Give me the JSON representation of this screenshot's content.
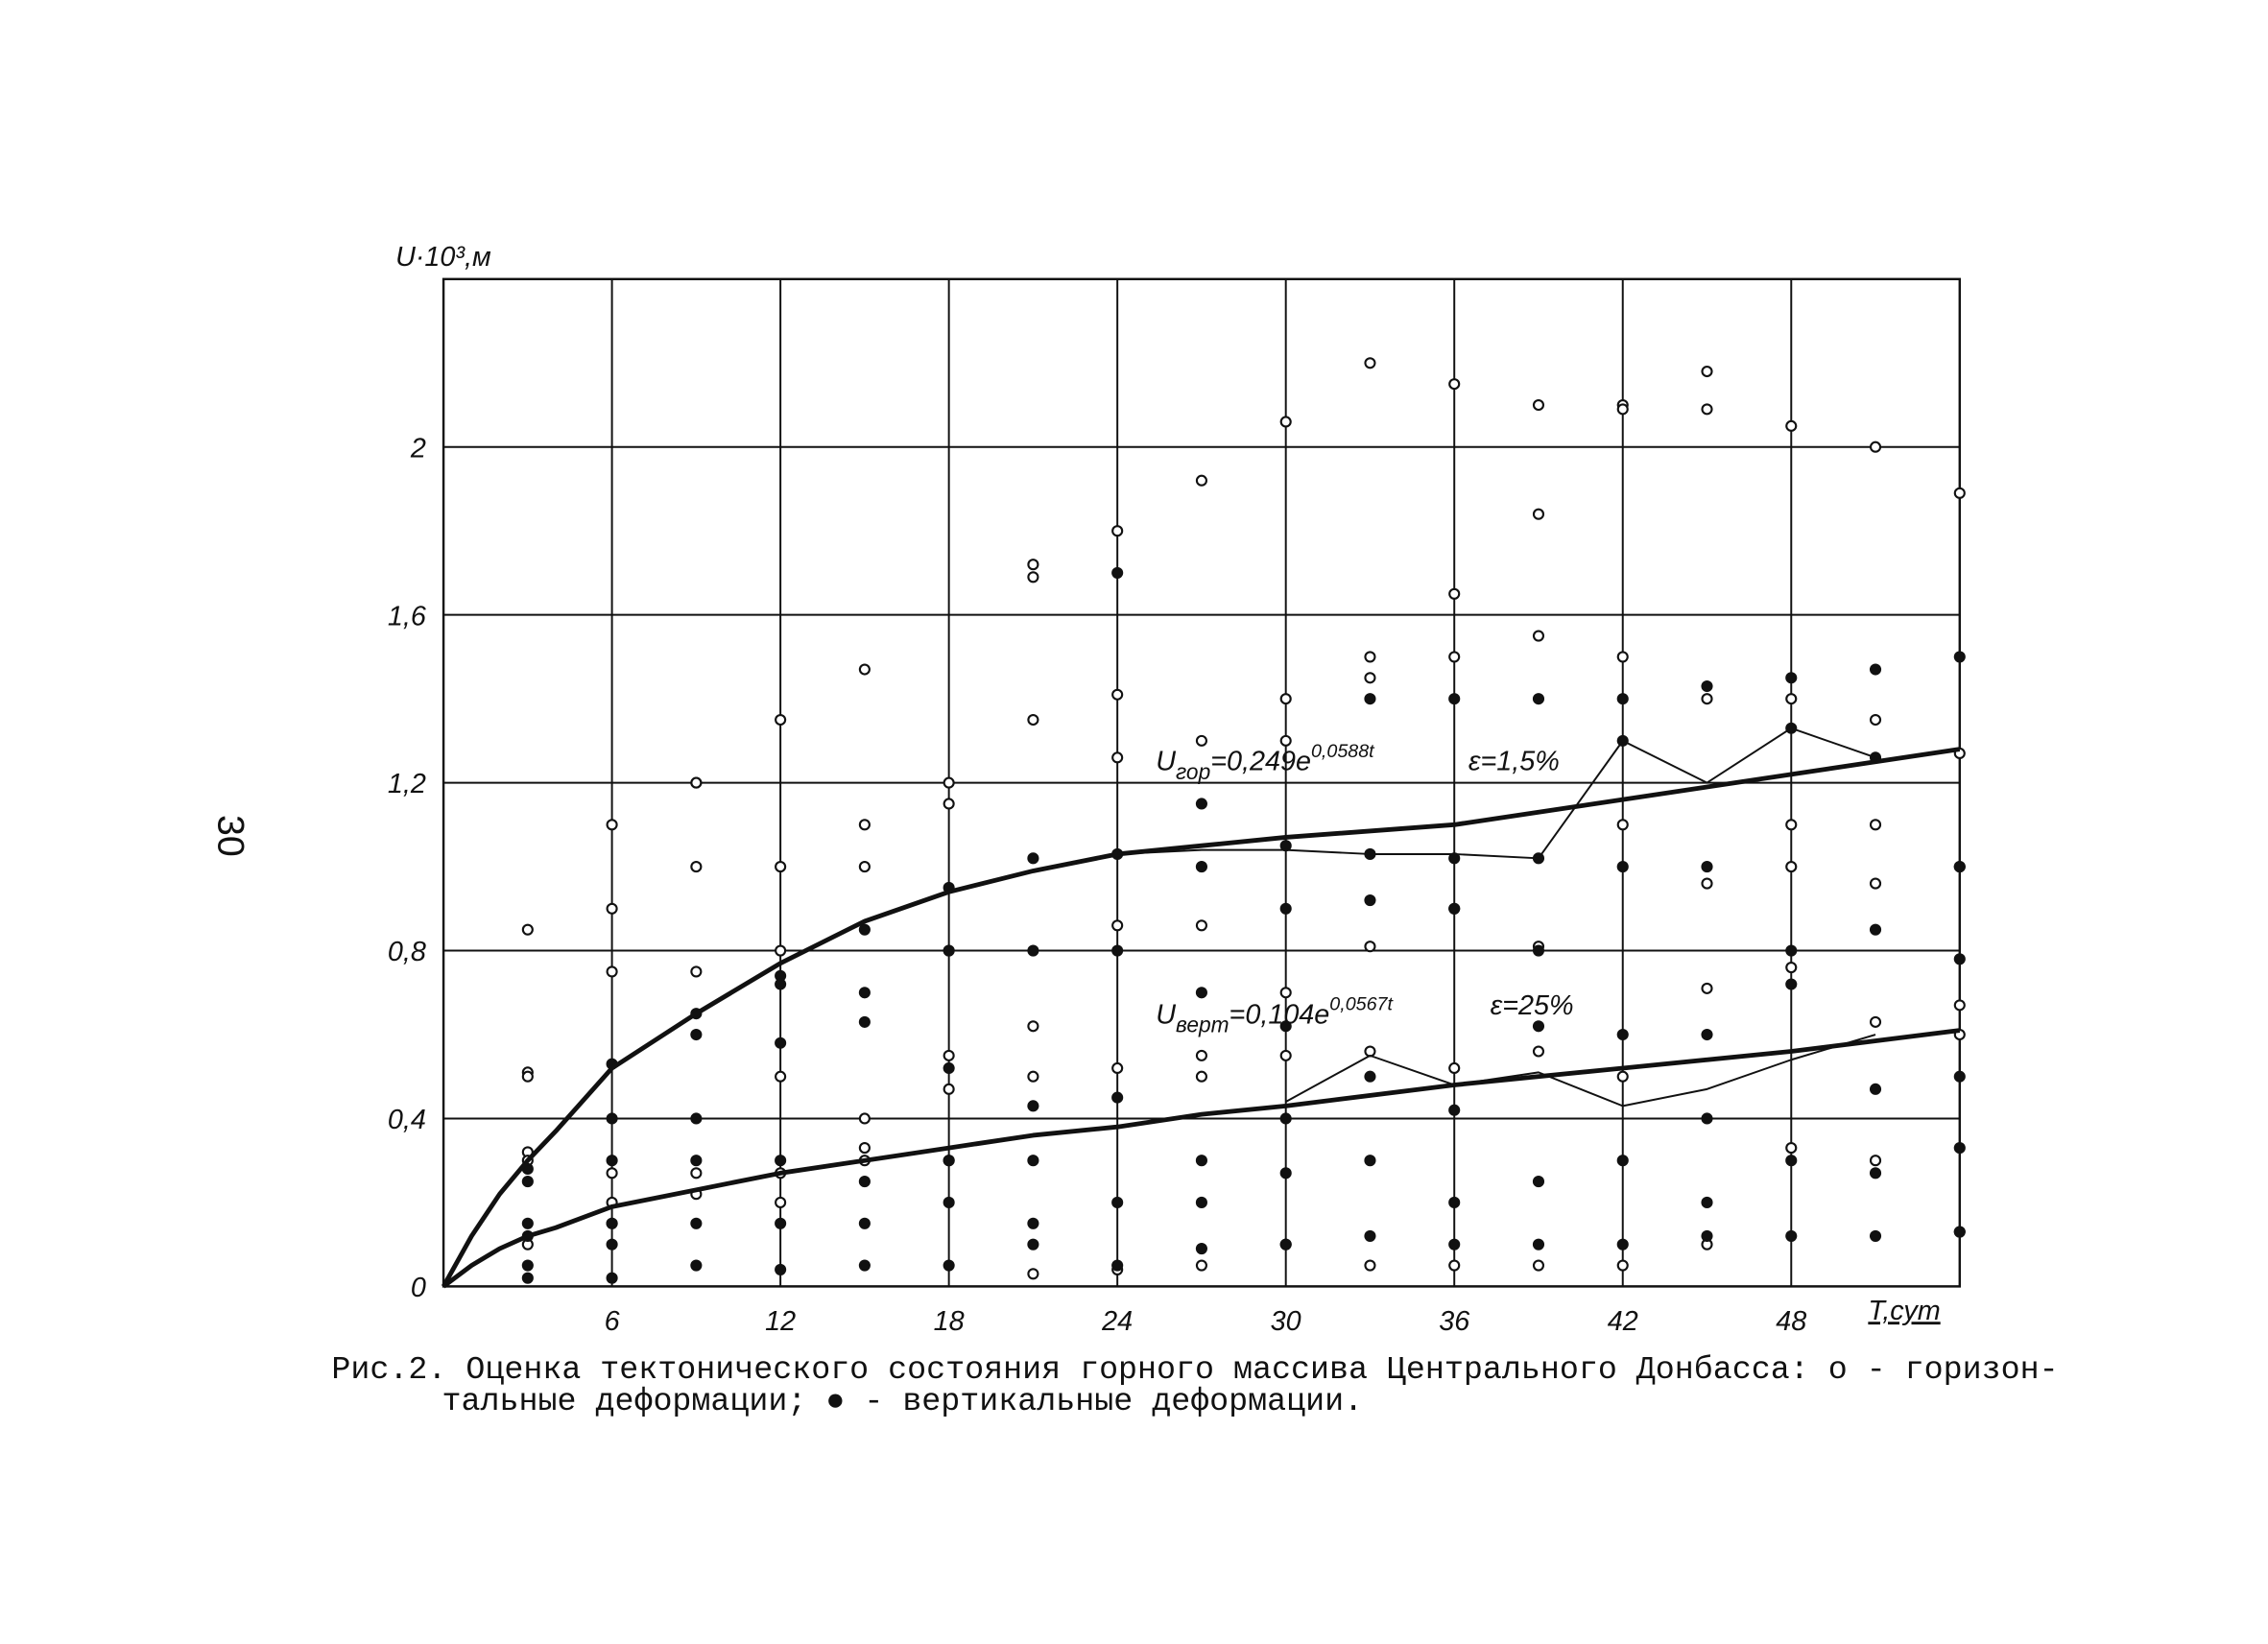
{
  "page_number": "30",
  "caption": [
    "Рис.2. Оценка тектонического состояния горного массива Центрального Донбасса: о - горизон-",
    "тальные деформации;  ● - вертикальные деформации."
  ],
  "chart_data": {
    "type": "scatter",
    "y_label": "U·10³,м",
    "x_label": "T,сут",
    "xlim": [
      0,
      54
    ],
    "ylim": [
      0,
      2.4
    ],
    "xticks": [
      6,
      12,
      18,
      24,
      30,
      36,
      42,
      48
    ],
    "yticks": [
      0,
      {
        "value": 0.4,
        "label": "0,4"
      },
      {
        "value": 0.8,
        "label": "0,8"
      },
      {
        "value": 1.2,
        "label": "1,2"
      },
      {
        "value": 1.6,
        "label": "1,6"
      },
      2
    ],
    "grid": true,
    "color": "#111",
    "annotations": [
      {
        "text": "U",
        "sub": "гор",
        "rest": "=0,249e",
        "sup": "0,0588t"
      },
      {
        "text": "ε=1,5%"
      },
      {
        "text": "U",
        "sub": "верт",
        "rest": "=0,104e",
        "sup": "0,0567t"
      },
      {
        "text": "ε=25%"
      }
    ],
    "series": [
      {
        "marker": "open",
        "x": [
          3,
          3,
          3,
          3,
          3,
          3,
          6,
          6,
          6,
          6,
          6,
          6,
          9,
          9,
          9,
          9,
          9,
          9,
          12,
          12,
          12,
          12,
          12,
          12,
          15,
          15,
          15,
          15,
          15,
          15,
          18,
          18,
          18,
          18,
          18,
          18,
          21,
          21,
          21,
          21,
          21,
          21,
          24,
          24,
          24,
          24,
          24,
          24,
          27,
          27,
          27,
          27,
          27,
          27,
          30,
          30,
          30,
          30,
          30,
          30,
          33,
          33,
          33,
          33,
          33,
          33,
          36,
          36,
          36,
          36,
          36,
          36,
          39,
          39,
          39,
          39,
          39,
          39,
          42,
          42,
          42,
          42,
          42,
          42,
          45,
          45,
          45,
          45,
          45,
          45,
          48,
          48,
          48,
          48,
          48,
          48,
          51,
          51,
          51,
          51,
          51,
          51,
          54,
          54,
          54,
          54,
          54,
          54
        ],
        "values": [
          0.85,
          0.51,
          0.5,
          0.32,
          0.3,
          0.1,
          1.1,
          0.9,
          0.75,
          0.27,
          0.2,
          0.15,
          1.2,
          1.2,
          1.0,
          0.75,
          0.27,
          0.22,
          1.35,
          1.0,
          0.8,
          0.5,
          0.27,
          0.2,
          1.47,
          1.1,
          1.0,
          0.4,
          0.33,
          0.3,
          1.2,
          1.15,
          0.8,
          0.55,
          0.47,
          0.3,
          1.72,
          1.69,
          1.35,
          0.62,
          0.5,
          0.03,
          1.8,
          1.41,
          1.26,
          0.86,
          0.52,
          0.04,
          1.92,
          1.3,
          0.86,
          0.55,
          0.5,
          0.05,
          2.06,
          1.4,
          1.3,
          0.7,
          0.55,
          0.1,
          2.2,
          1.5,
          1.45,
          0.81,
          0.56,
          0.05,
          2.15,
          1.65,
          1.5,
          0.9,
          0.52,
          0.05,
          2.1,
          1.84,
          1.55,
          0.81,
          0.56,
          0.05,
          2.1,
          2.09,
          1.5,
          1.1,
          0.5,
          0.05,
          2.18,
          2.09,
          1.4,
          0.96,
          0.71,
          0.1,
          2.05,
          1.4,
          1.1,
          1.0,
          0.76,
          0.33,
          2.0,
          1.35,
          1.1,
          0.96,
          0.63,
          0.3,
          1.89,
          1.27,
          1.0,
          0.67,
          0.6,
          0.13
        ]
      },
      {
        "marker": "filled",
        "x": [
          3,
          3,
          3,
          3,
          3,
          3,
          6,
          6,
          6,
          6,
          6,
          6,
          9,
          9,
          9,
          9,
          9,
          9,
          12,
          12,
          12,
          12,
          12,
          12,
          15,
          15,
          15,
          15,
          15,
          15,
          18,
          18,
          18,
          18,
          18,
          18,
          21,
          21,
          21,
          21,
          21,
          21,
          24,
          24,
          24,
          24,
          24,
          24,
          27,
          27,
          27,
          27,
          27,
          27,
          30,
          30,
          30,
          30,
          30,
          30,
          33,
          33,
          33,
          33,
          33,
          33,
          36,
          36,
          36,
          36,
          36,
          36,
          39,
          39,
          39,
          39,
          39,
          39,
          42,
          42,
          42,
          42,
          42,
          42,
          45,
          45,
          45,
          45,
          45,
          45,
          48,
          48,
          48,
          48,
          48,
          48,
          51,
          51,
          51,
          51,
          51,
          51,
          54,
          54,
          54,
          54,
          54,
          54
        ],
        "values": [
          0.28,
          0.25,
          0.15,
          0.12,
          0.05,
          0.02,
          0.53,
          0.4,
          0.3,
          0.15,
          0.1,
          0.02,
          0.65,
          0.6,
          0.4,
          0.3,
          0.15,
          0.05,
          0.74,
          0.72,
          0.58,
          0.3,
          0.15,
          0.04,
          0.85,
          0.7,
          0.63,
          0.25,
          0.15,
          0.05,
          0.95,
          0.8,
          0.52,
          0.3,
          0.2,
          0.05,
          1.02,
          0.8,
          0.43,
          0.3,
          0.15,
          0.1,
          1.7,
          1.03,
          0.8,
          0.45,
          0.2,
          0.05,
          1.15,
          1.0,
          0.7,
          0.3,
          0.2,
          0.09,
          1.05,
          0.9,
          0.62,
          0.4,
          0.27,
          0.1,
          1.4,
          1.03,
          0.92,
          0.5,
          0.3,
          0.12,
          1.4,
          1.02,
          0.9,
          0.42,
          0.2,
          0.1,
          1.4,
          1.02,
          0.8,
          0.62,
          0.25,
          0.1,
          1.4,
          1.3,
          1.0,
          0.6,
          0.3,
          0.1,
          1.43,
          1.0,
          0.6,
          0.4,
          0.2,
          0.12,
          1.45,
          1.33,
          0.8,
          0.72,
          0.3,
          0.12,
          1.47,
          1.26,
          0.85,
          0.47,
          0.27,
          0.12,
          1.5,
          1.0,
          0.78,
          0.5,
          0.33,
          0.13
        ]
      },
      {
        "marker": "line",
        "width": 3.2,
        "x": [
          0,
          1,
          2,
          3,
          4,
          6,
          9,
          12,
          15,
          18,
          21,
          24,
          27,
          30,
          36,
          42,
          48,
          54
        ],
        "values": [
          0,
          0.12,
          0.22,
          0.3,
          0.37,
          0.52,
          0.65,
          0.77,
          0.87,
          0.94,
          0.99,
          1.03,
          1.05,
          1.07,
          1.1,
          1.16,
          1.22,
          1.28
        ]
      },
      {
        "marker": "line",
        "width": 3.2,
        "x": [
          0,
          1,
          2,
          3,
          4,
          6,
          9,
          12,
          15,
          18,
          21,
          24,
          27,
          30,
          36,
          42,
          48,
          54
        ],
        "values": [
          0,
          0.05,
          0.09,
          0.12,
          0.14,
          0.19,
          0.23,
          0.27,
          0.3,
          0.33,
          0.36,
          0.38,
          0.41,
          0.43,
          0.48,
          0.52,
          0.56,
          0.61
        ]
      },
      {
        "marker": "mean",
        "width": 1.3,
        "x": [
          24,
          27,
          30,
          33,
          36,
          39,
          42,
          45,
          48,
          51
        ],
        "values": [
          1.03,
          1.04,
          1.04,
          1.03,
          1.03,
          1.02,
          1.3,
          1.2,
          1.33,
          1.26
        ]
      },
      {
        "marker": "mean",
        "width": 1.3,
        "x": [
          30,
          33,
          36,
          39,
          42,
          45,
          48,
          51
        ],
        "values": [
          0.44,
          0.55,
          0.48,
          0.51,
          0.43,
          0.47,
          0.54,
          0.6
        ]
      }
    ]
  }
}
